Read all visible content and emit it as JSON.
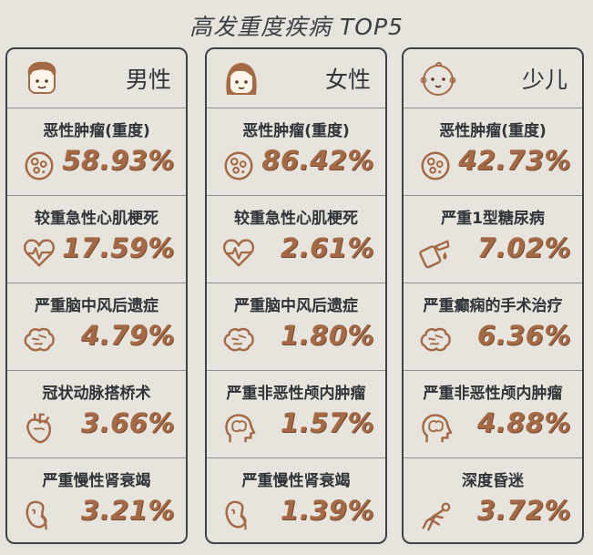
{
  "title": "高发重度疾病 TOP5",
  "accent_color": "#a46a45",
  "columns": [
    {
      "label": "男性",
      "icon": "man-face-icon",
      "items": [
        {
          "name": "恶性肿瘤(重度)",
          "value": "58.93%",
          "icon": "cell-icon"
        },
        {
          "name": "较重急性心肌梗死",
          "value": "17.59%",
          "icon": "heartbeat-icon"
        },
        {
          "name": "严重脑中风后遗症",
          "value": "4.79%",
          "icon": "brain-icon"
        },
        {
          "name": "冠状动脉搭桥术",
          "value": "3.66%",
          "icon": "heart-organ-icon"
        },
        {
          "name": "严重慢性肾衰竭",
          "value": "3.21%",
          "icon": "kidney-icon"
        }
      ]
    },
    {
      "label": "女性",
      "icon": "woman-face-icon",
      "items": [
        {
          "name": "恶性肿瘤(重度)",
          "value": "86.42%",
          "icon": "cell-icon"
        },
        {
          "name": "较重急性心肌梗死",
          "value": "2.61%",
          "icon": "heartbeat-icon"
        },
        {
          "name": "严重脑中风后遗症",
          "value": "1.80%",
          "icon": "brain-icon"
        },
        {
          "name": "严重非恶性颅内肿瘤",
          "value": "1.57%",
          "icon": "head-brain-icon"
        },
        {
          "name": "严重慢性肾衰竭",
          "value": "1.39%",
          "icon": "kidney-icon"
        }
      ]
    },
    {
      "label": "少儿",
      "icon": "baby-face-icon",
      "items": [
        {
          "name": "恶性肿瘤(重度)",
          "value": "42.73%",
          "icon": "cell-icon"
        },
        {
          "name": "严重1型糖尿病",
          "value": "7.02%",
          "icon": "glucose-meter-icon"
        },
        {
          "name": "严重癫痫的手术治疗",
          "value": "6.36%",
          "icon": "brain-icon"
        },
        {
          "name": "严重非恶性颅内肿瘤",
          "value": "4.88%",
          "icon": "head-brain-icon"
        },
        {
          "name": "深度昏迷",
          "value": "3.72%",
          "icon": "lying-person-icon"
        }
      ]
    }
  ]
}
